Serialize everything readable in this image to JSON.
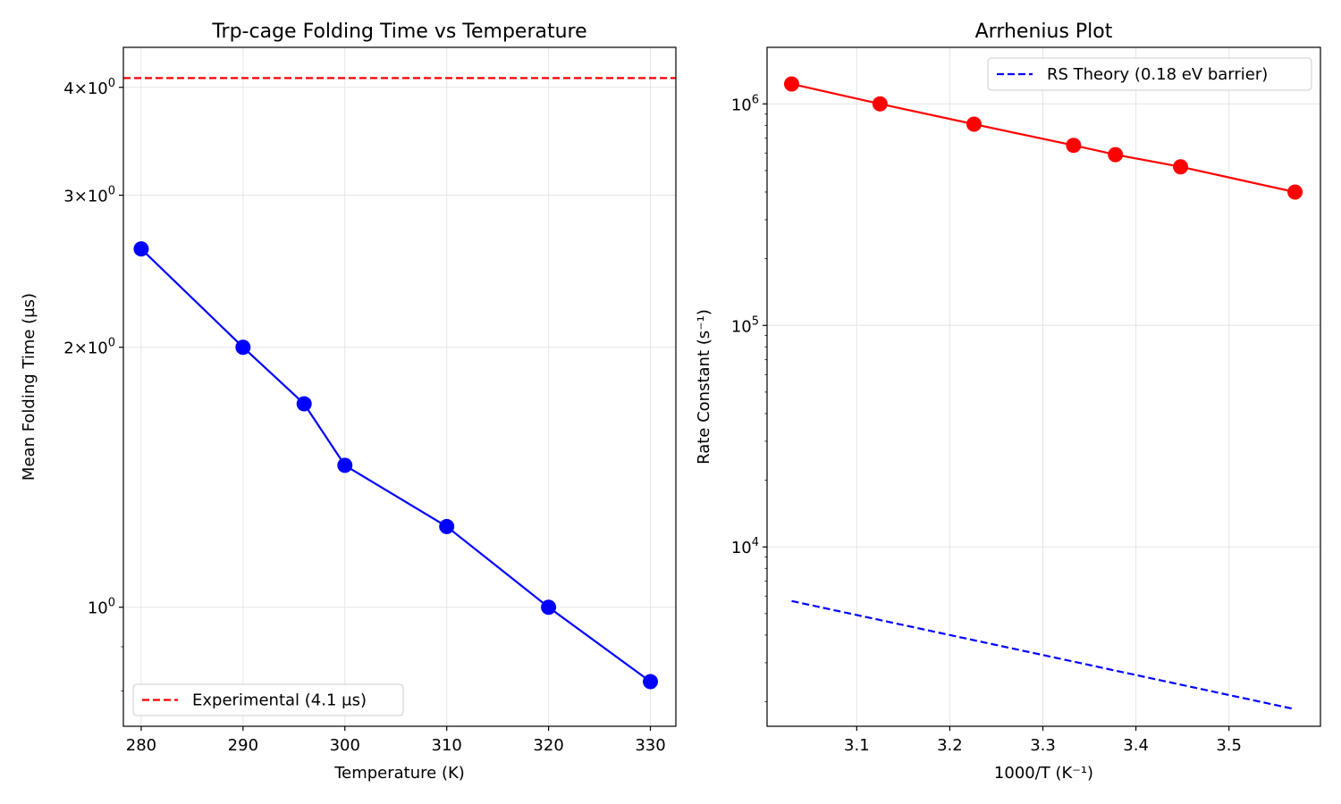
{
  "chart_data": [
    {
      "type": "line",
      "title": "Trp-cage Folding Time vs Temperature",
      "xlabel": "Temperature (K)",
      "ylabel": "Mean Folding Time (µs)",
      "x_scale": "linear",
      "y_scale": "log",
      "xlim": [
        278.25,
        332.5
      ],
      "ylim": [
        0.728,
        4.45
      ],
      "x_ticks": [
        {
          "value": 280,
          "label": "280"
        },
        {
          "value": 290,
          "label": "290"
        },
        {
          "value": 300,
          "label": "300"
        },
        {
          "value": 310,
          "label": "310"
        },
        {
          "value": 320,
          "label": "320"
        },
        {
          "value": 330,
          "label": "330"
        }
      ],
      "y_ticks": [
        {
          "value": 1,
          "base": "10",
          "exp": "0"
        },
        {
          "value": 2,
          "mult": "2",
          "base": "10",
          "exp": "0"
        },
        {
          "value": 3,
          "mult": "3",
          "base": "10",
          "exp": "0"
        },
        {
          "value": 4,
          "mult": "4",
          "base": "10",
          "exp": "0"
        }
      ],
      "grid": true,
      "legend_position": "lower-left",
      "series": [
        {
          "kind": "line-markers",
          "color": "#0000ff",
          "x": [
            280,
            290,
            296,
            300,
            310,
            320,
            330
          ],
          "y": [
            2.6,
            2.0,
            1.72,
            1.46,
            1.24,
            1.0,
            0.82
          ]
        },
        {
          "kind": "hline",
          "name": "Experimental (4.1 µs)",
          "color": "#ff0000",
          "dashed": true,
          "y": 4.1
        }
      ]
    },
    {
      "type": "line",
      "title": "Arrhenius Plot",
      "xlabel": "1000/T (K⁻¹)",
      "ylabel": "Rate Constant (s⁻¹)",
      "x_scale": "linear",
      "y_scale": "log",
      "xlim": [
        3.0036,
        3.5983
      ],
      "ylim": [
        1550,
        1800000
      ],
      "x_ticks": [
        {
          "value": 3.1,
          "label": "3.1"
        },
        {
          "value": 3.2,
          "label": "3.2"
        },
        {
          "value": 3.3,
          "label": "3.3"
        },
        {
          "value": 3.4,
          "label": "3.4"
        },
        {
          "value": 3.5,
          "label": "3.5"
        }
      ],
      "y_ticks": [
        {
          "value": 10000,
          "base": "10",
          "exp": "4"
        },
        {
          "value": 100000,
          "base": "10",
          "exp": "5"
        },
        {
          "value": 1000000,
          "base": "10",
          "exp": "6"
        }
      ],
      "grid": true,
      "legend_position": "top-right",
      "series": [
        {
          "kind": "line-markers",
          "color": "#ff0000",
          "x": [
            3.03,
            3.125,
            3.226,
            3.333,
            3.378,
            3.448,
            3.571
          ],
          "y": [
            1230000,
            1000000,
            810000,
            650000,
            590000,
            520000,
            400000
          ]
        },
        {
          "kind": "line",
          "name": "RS Theory (0.18 eV barrier)",
          "color": "#0000ff",
          "dashed": true,
          "x": [
            3.03,
            3.571
          ],
          "y": [
            5700,
            1850
          ]
        }
      ]
    }
  ]
}
